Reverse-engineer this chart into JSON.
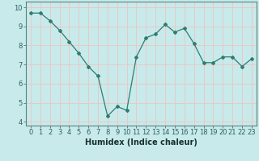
{
  "x": [
    0,
    1,
    2,
    3,
    4,
    5,
    6,
    7,
    8,
    9,
    10,
    11,
    12,
    13,
    14,
    15,
    16,
    17,
    18,
    19,
    20,
    21,
    22,
    23
  ],
  "y": [
    9.7,
    9.7,
    9.3,
    8.8,
    8.2,
    7.6,
    6.9,
    6.4,
    4.3,
    4.8,
    4.6,
    7.4,
    8.4,
    8.6,
    9.1,
    8.7,
    8.9,
    8.1,
    7.1,
    7.1,
    7.4,
    7.4,
    6.9,
    7.3
  ],
  "xlabel": "Humidex (Indice chaleur)",
  "ylim": [
    3.8,
    10.3
  ],
  "xlim": [
    -0.5,
    23.5
  ],
  "yticks": [
    4,
    5,
    6,
    7,
    8,
    9,
    10
  ],
  "xticks": [
    0,
    1,
    2,
    3,
    4,
    5,
    6,
    7,
    8,
    9,
    10,
    11,
    12,
    13,
    14,
    15,
    16,
    17,
    18,
    19,
    20,
    21,
    22,
    23
  ],
  "line_color": "#2e7d72",
  "marker": "D",
  "marker_size": 2.0,
  "bg_color": "#c8eaea",
  "grid_color": "#e8c8c8",
  "axis_color": "#5a8080",
  "tick_label_color": "#2e6060",
  "xlabel_color": "#1a3030",
  "xlabel_fontsize": 7.0,
  "tick_fontsize": 6.0
}
